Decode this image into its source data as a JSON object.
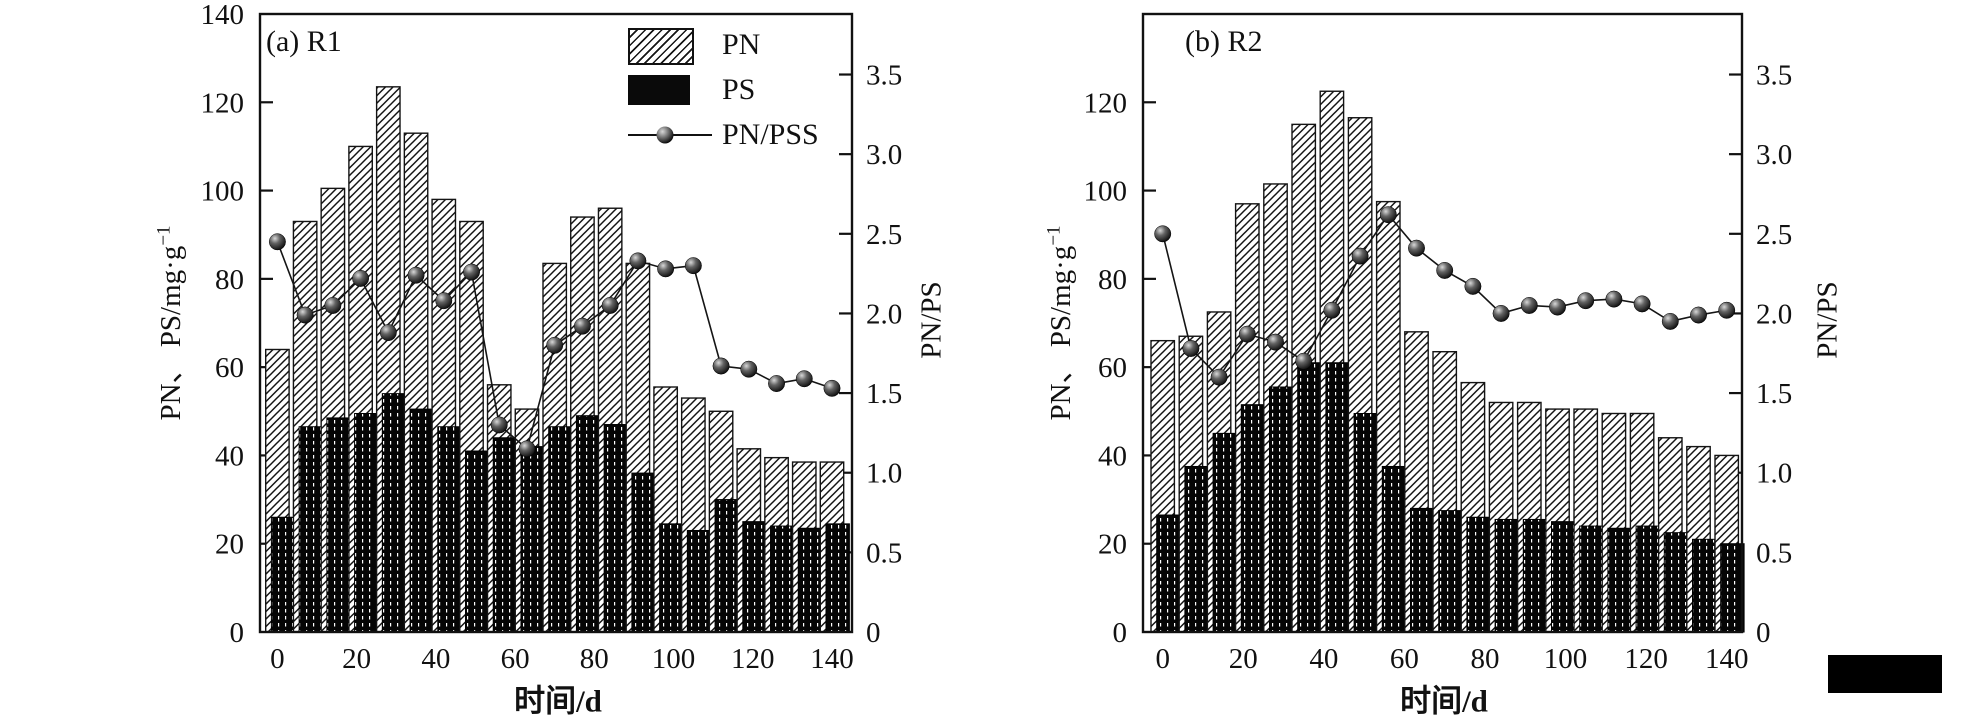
{
  "figure": {
    "colors": {
      "ink": "#111111",
      "background": "#ffffff"
    },
    "panels": [
      {
        "title": "(a) R1",
        "xlabel": "时间/d",
        "ylabel_main": "PN、 PS/mg·g",
        "ylabel_sup": "−1",
        "y2label": "PN/PS"
      },
      {
        "title": "(b) R2",
        "xlabel": "时间/d",
        "ylabel_main": "PN、 PS/mg·g",
        "ylabel_sup": "−1",
        "y2label": "PN/PS"
      }
    ],
    "legend": {
      "pn": "PN",
      "ps": "PS",
      "ratio": "PN/PSS"
    }
  },
  "chart_data": [
    {
      "type": "bar",
      "panel_label": "(a) R1",
      "x_days": [
        0,
        7,
        14,
        21,
        28,
        35,
        42,
        49,
        56,
        63,
        70,
        77,
        84,
        91,
        98,
        105,
        112,
        119,
        126,
        133,
        140
      ],
      "series": [
        {
          "name": "PN",
          "type": "bar",
          "fill": "diagonal-hatch",
          "yaxis": "left",
          "values": [
            64,
            93,
            100.5,
            110,
            123.5,
            113,
            98,
            93,
            56,
            50.5,
            83.5,
            94,
            96,
            83.5,
            55.5,
            53,
            50,
            41.5,
            39.5,
            38.5,
            38.5
          ]
        },
        {
          "name": "PS",
          "type": "bar",
          "fill": "solid-black",
          "yaxis": "left",
          "values": [
            26,
            46.5,
            48.5,
            49.5,
            54,
            50.5,
            46.5,
            41,
            44,
            42,
            46.5,
            49,
            47,
            36,
            24.5,
            23,
            30,
            25,
            24,
            23.5,
            24.5
          ]
        },
        {
          "name": "PN/PSS",
          "type": "line",
          "marker": "sphere",
          "yaxis": "right",
          "values": [
            2.45,
            1.99,
            2.05,
            2.22,
            1.88,
            2.24,
            2.08,
            2.26,
            1.3,
            1.15,
            1.8,
            1.92,
            2.05,
            2.33,
            2.28,
            2.3,
            1.67,
            1.65,
            1.56,
            1.59,
            1.53
          ]
        }
      ],
      "xlabel": "时间/d",
      "ylabel": "PN、 PS/mg·g⁻¹",
      "y2label": "PN/PS",
      "xticks": [
        0,
        20,
        40,
        60,
        80,
        100,
        120,
        140
      ],
      "ytick_labels": [
        0,
        20,
        40,
        60,
        80,
        100,
        120,
        140
      ],
      "y2tick_labels": [
        "0",
        "0.5",
        "1.0",
        "1.5",
        "2.0",
        "2.5",
        "3.0",
        "3.5"
      ],
      "ylim": [
        0,
        140
      ],
      "y2lim": [
        0,
        3.88
      ],
      "grid": false,
      "legend_entries": [
        "PN",
        "PS",
        "PN/PSS"
      ],
      "legend_position": "inside-top-right"
    },
    {
      "type": "bar",
      "panel_label": "(b) R2",
      "x_days": [
        0,
        7,
        14,
        21,
        28,
        35,
        42,
        49,
        56,
        63,
        70,
        77,
        84,
        91,
        98,
        105,
        112,
        119,
        126,
        133,
        140
      ],
      "series": [
        {
          "name": "PN",
          "type": "bar",
          "fill": "diagonal-hatch",
          "yaxis": "left",
          "values": [
            66,
            67,
            72.5,
            97,
            101.5,
            115,
            122.5,
            116.5,
            97.5,
            68,
            63.5,
            56.5,
            52,
            52,
            50.5,
            50.5,
            49.5,
            49.5,
            44,
            42,
            40
          ]
        },
        {
          "name": "PS",
          "type": "bar",
          "fill": "solid-black",
          "yaxis": "left",
          "values": [
            26.5,
            37.5,
            45,
            51.5,
            55.5,
            61,
            61,
            49.5,
            37.5,
            28,
            27.5,
            26,
            25.5,
            25.5,
            25,
            24,
            23.5,
            24,
            22.5,
            21,
            20
          ]
        },
        {
          "name": "PN/PSS",
          "type": "line",
          "marker": "sphere",
          "yaxis": "right",
          "values": [
            2.5,
            1.78,
            1.6,
            1.87,
            1.82,
            1.7,
            2.02,
            2.36,
            2.62,
            2.41,
            2.27,
            2.17,
            2.0,
            2.05,
            2.04,
            2.08,
            2.09,
            2.06,
            1.95,
            1.99,
            2.02
          ]
        }
      ],
      "xlabel": "时间/d",
      "ylabel": "PN、 PS/mg·g⁻¹",
      "y2label": "PN/PS",
      "xticks": [
        0,
        20,
        40,
        60,
        80,
        100,
        120,
        140
      ],
      "ytick_labels": [
        0,
        20,
        40,
        60,
        80,
        100,
        120
      ],
      "y2tick_labels": [
        "0",
        "0.5",
        "1.0",
        "1.5",
        "2.0",
        "2.5",
        "3.0",
        "3.5"
      ],
      "ylim": [
        0,
        140
      ],
      "y2lim": [
        0,
        3.88
      ],
      "grid": false,
      "legend_entries": [],
      "legend_position": "none"
    }
  ]
}
